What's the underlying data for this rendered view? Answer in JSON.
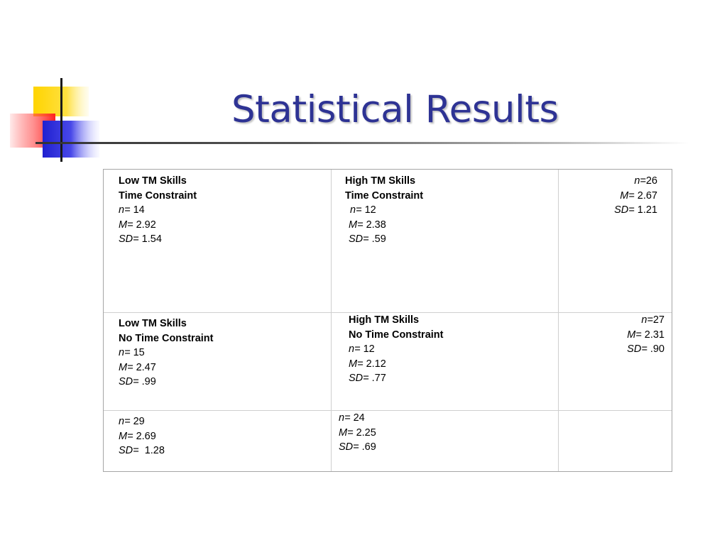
{
  "slide": {
    "title": "Statistical Results"
  },
  "colors": {
    "title": "#2e3394",
    "yellow": "#ffd400",
    "red": "#ff3a3a",
    "blue": "#2a2ad8"
  },
  "table": {
    "row1": {
      "low": {
        "line1": "Low TM Skills",
        "line2": "Time Constraint",
        "n_label": "n=",
        "n": "14",
        "m_label": "M=",
        "m": "2.92",
        "sd_label": "SD=",
        "sd": "1.54"
      },
      "high": {
        "line1": "High TM Skills",
        "line2": "Time Constraint",
        "n_label": "n=",
        "n": "12",
        "m_label": "M=",
        "m": "2.38",
        "sd_label": "SD=",
        "sd": ".59"
      },
      "total": {
        "n_label": "n=",
        "n": "26",
        "m_label": "M=",
        "m": "2.67",
        "sd_label": "SD=",
        "sd": "1.21"
      }
    },
    "row2": {
      "low": {
        "line1": "Low TM Skills",
        "line2": "No Time Constraint",
        "n_label": "n=",
        "n": "15",
        "m_label": "M=",
        "m": "2.47",
        "sd_label": "SD=",
        "sd": ".99"
      },
      "high": {
        "line1": "High TM Skills",
        "line2": "No Time Constraint",
        "n_label": "n=",
        "n": "12",
        "m_label": "M=",
        "m": "2.12",
        "sd_label": "SD=",
        "sd": ".77"
      },
      "total": {
        "n_label": "n=",
        "n": "27",
        "m_label": "M=",
        "m": "2.31",
        "sd_label": "SD=",
        "sd": ".90"
      }
    },
    "row3": {
      "low": {
        "n_label": "n=",
        "n": "29",
        "m_label": "M=",
        "m": "2.69",
        "sd_label": "SD=",
        "sd": "1.28"
      },
      "high": {
        "n_label": "n=",
        "n": "24",
        "m_label": "M=",
        "m": "2.25",
        "sd_label": "SD=",
        "sd": ".69"
      }
    }
  }
}
